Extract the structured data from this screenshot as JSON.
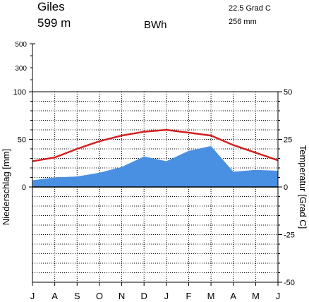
{
  "header": {
    "station": "Giles",
    "elevation": "599 m",
    "climate_class": "BWh",
    "mean_temperature": "22.5 Grad C",
    "annual_precipitation": "256 mm"
  },
  "chart_data": {
    "type": "climate-diagram",
    "months": [
      "J",
      "A",
      "S",
      "O",
      "N",
      "D",
      "J",
      "F",
      "M",
      "A",
      "M",
      "J"
    ],
    "precipitation_mm": [
      7,
      10,
      11,
      15,
      21,
      32,
      27,
      38,
      43,
      16,
      18,
      17
    ],
    "temperature_c": [
      13.5,
      15.5,
      20,
      24,
      27,
      29,
      30,
      28.5,
      27,
      22,
      18,
      14
    ],
    "precip_axis": {
      "label": "Niederschlag [mm]",
      "ticks_linear": [
        100,
        50,
        0
      ],
      "ticks_compressed": [
        500,
        300
      ],
      "compression_threshold": 100
    },
    "temp_axis": {
      "label": "Temperatur [Grad C]",
      "ticks": [
        50,
        25,
        0,
        -25,
        -50
      ],
      "range": [
        -50,
        50
      ]
    },
    "colors": {
      "precipitation_fill": "#4a90e2",
      "temperature_line": "#d42020",
      "grid": "#000000"
    },
    "grid": true
  }
}
